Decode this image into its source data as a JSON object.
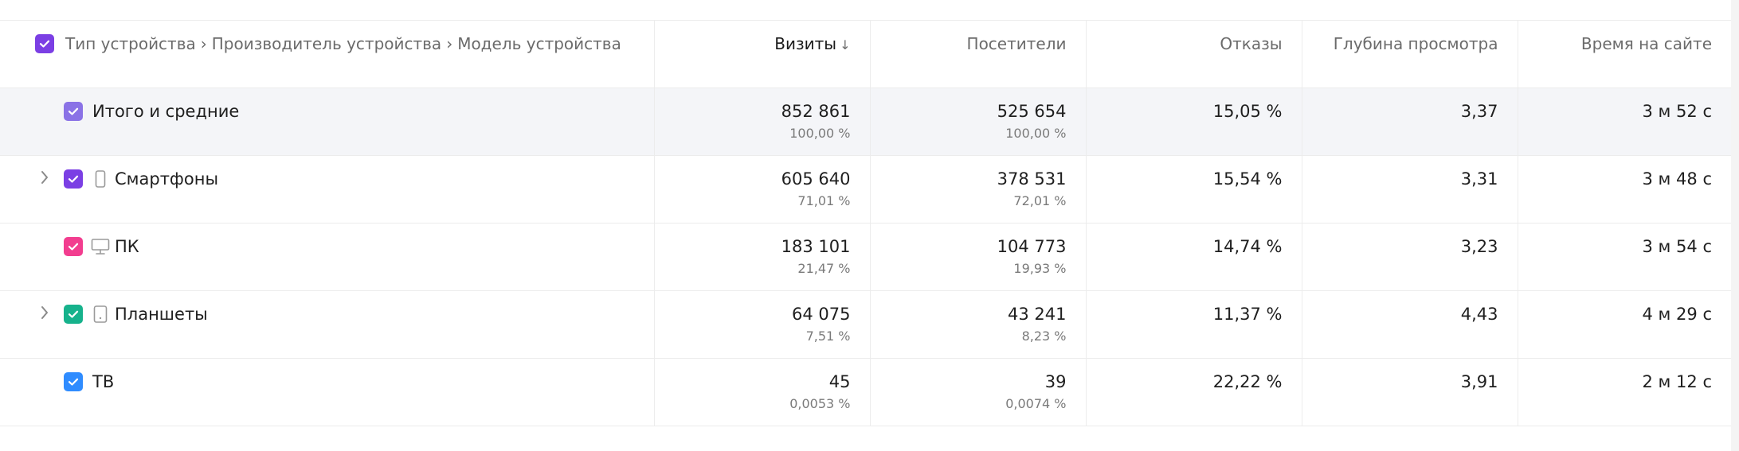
{
  "header": {
    "dimensions": [
      "Тип устройства",
      "Производитель устройства",
      "Модель устройства"
    ],
    "separator": "›",
    "metrics": [
      "Визиты",
      "Посетители",
      "Отказы",
      "Глубина просмотра",
      "Время на сайте"
    ],
    "sort_arrow": "↓"
  },
  "colors": {
    "header_checkbox": "#7b3fe4",
    "total": "#8a72e6",
    "smartphones": "#7b3fe4",
    "pc": "#f23d8f",
    "tablets": "#16b28c",
    "tv": "#2f8cff",
    "total_row_bg": "#f4f5f8"
  },
  "rows": [
    {
      "label": "Итого и средние",
      "visits": "852 861",
      "visits_pct": "100,00 %",
      "visitors": "525 654",
      "visitors_pct": "100,00 %",
      "bounce": "15,05 %",
      "depth": "3,37",
      "time": "3 м 52 с"
    },
    {
      "label": "Смартфоны",
      "icon": "smartphone-icon",
      "expandable": true,
      "visits": "605 640",
      "visits_pct": "71,01 %",
      "visitors": "378 531",
      "visitors_pct": "72,01 %",
      "bounce": "15,54 %",
      "depth": "3,31",
      "time": "3 м 48 с"
    },
    {
      "label": "ПК",
      "icon": "desktop-icon",
      "visits": "183 101",
      "visits_pct": "21,47 %",
      "visitors": "104 773",
      "visitors_pct": "19,93 %",
      "bounce": "14,74 %",
      "depth": "3,23",
      "time": "3 м 54 с"
    },
    {
      "label": "Планшеты",
      "icon": "tablet-icon",
      "expandable": true,
      "visits": "64 075",
      "visits_pct": "7,51 %",
      "visitors": "43 241",
      "visitors_pct": "8,23 %",
      "bounce": "11,37 %",
      "depth": "4,43",
      "time": "4 м 29 с"
    },
    {
      "label": "ТВ",
      "visits": "45",
      "visits_pct": "0,0053 %",
      "visitors": "39",
      "visitors_pct": "0,0074 %",
      "bounce": "22,22 %",
      "depth": "3,91",
      "time": "2 м 12 с"
    }
  ]
}
